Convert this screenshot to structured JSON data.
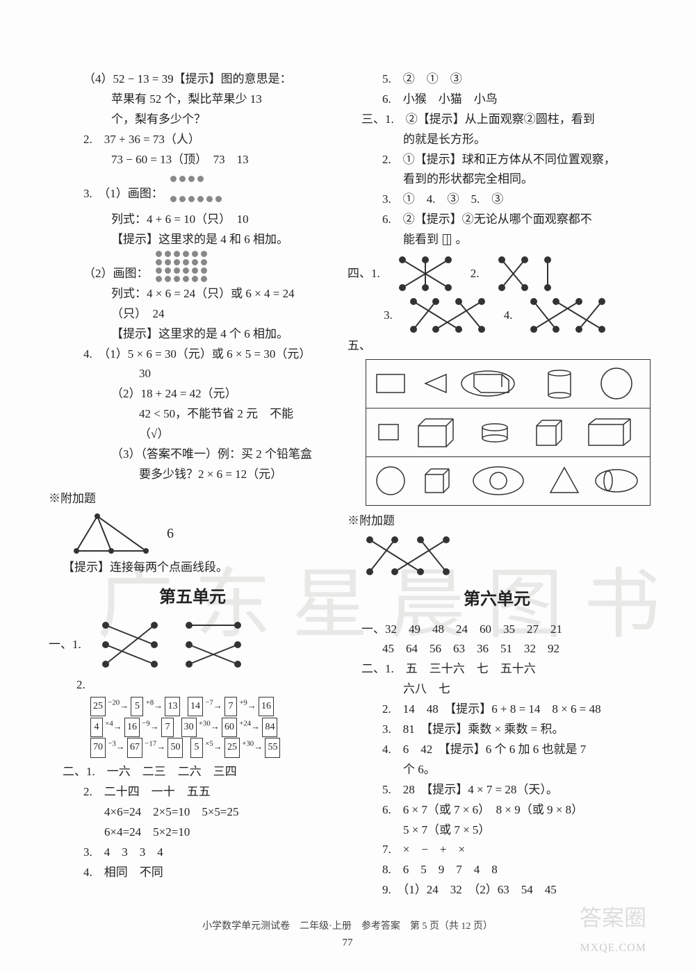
{
  "footer": "小学数学单元测试卷　二年级·上册　参考答案　第 5 页（共 12 页）",
  "pagenum": "77",
  "watermark": "广东星晨图书",
  "wm_corner": "答案圈",
  "wm_url": "MXQE.COM",
  "left": {
    "l1": "（4）52 − 13 = 39【提示】图的意思是：",
    "l2": "苹果有 52 个，梨比苹果少 13",
    "l3": "个，梨有多少个？",
    "l4": "2.　37 + 36 = 73（人）",
    "l5": "73 − 60 = 13（顶）　73　13",
    "l6": "3.　（1）画图：",
    "l7": "列式：4 + 6 = 10（只）　10",
    "l8": "【提示】这里求的是 4 和 6 相加。",
    "l9": "（2）画图：",
    "l10": "列式：4 × 6 = 24（只）或 6 × 4 = 24",
    "l11": "（只）　24",
    "l12": "【提示】这里求的是 4 个 6 相加。",
    "l13": "4.　（1）5 × 6 = 30（元）或 6 × 5 = 30（元）",
    "l14": "30",
    "l15": "（2）18 + 24 = 42（元）",
    "l16": "42 < 50，不能节省 2 元　不能",
    "l17": "（√）",
    "l18": "（3）（答案不唯一）例：买 2 个铅笔盒",
    "l19": "要多少钱？2 × 6 = 12（元）",
    "extra": "※附加题",
    "tri_ans": "6",
    "tri_hint": "【提示】连接每两个点画线段。",
    "unit5": "第五单元",
    "sec1_1": "一、1.",
    "sec1_2": "2.",
    "flow": {
      "r1a": [
        "25",
        "−20",
        "5",
        "+8",
        "13"
      ],
      "r1b": [
        "14",
        "−7",
        "7",
        "+9",
        "16"
      ],
      "r2a": [
        "4",
        "×4",
        "16",
        "−9",
        "7"
      ],
      "r2b": [
        "30",
        "+30",
        "60",
        "+24",
        "84"
      ],
      "r3a": [
        "70",
        "−3",
        "67",
        "−17",
        "50"
      ],
      "r3b": [
        "5",
        "×5",
        "25",
        "+30",
        "55"
      ]
    },
    "sec2_1": "二、1.　一六　二三　二六　三四",
    "sec2_2": "2.　二十四　一十　五五",
    "sec2_3": "4×6=24　2×5=10　5×5=25",
    "sec2_4": "6×4=24　5×2=10",
    "sec2_5": "3.　4　3　3　4",
    "sec2_6": "4.　相同　不同"
  },
  "right": {
    "r1": "5.　②　①　③",
    "r2": "6.　小猴　小猫　小鸟",
    "r3": "三、1.　②【提示】从上面观察②圆柱，看到",
    "r4": "的就是长方形。",
    "r5": "2.　①【提示】球和正方体从不同位置观察，",
    "r6": "看到的形状都完全相同。",
    "r7": "3.　①　4.　③　5.　③",
    "r8": "6.　②【提示】②无论从哪个面观察都不",
    "r9a": "能看到",
    "r9b": "。",
    "sec4": "四、1.",
    "sec4_2": "2.",
    "sec4_3": "3.",
    "sec4_4": "4.",
    "sec5": "五、",
    "extra": "※附加题",
    "unit6": "第六单元",
    "u6_1a": "一、32　49　48　24　60　35　27　21",
    "u6_1b": "45　64　56　63　36　51　32　92",
    "u6_2_1": "二、1.　五　三十六　七　五十六",
    "u6_2_1b": "六八　七",
    "u6_2_2": "2.　14　48　【提示】6 + 8 = 14　8 × 6 = 48",
    "u6_2_3": "3.　81　【提示】乘数 × 乘数 = 积。",
    "u6_2_4": "4.　6　42　【提示】6 个 6 加 6 也就是 7",
    "u6_2_4b": "个 6。",
    "u6_2_5": "5.　28　【提示】4 × 7 = 28（天）。",
    "u6_2_6": "6.　6 × 7（或 7 × 6）　8 × 9（或 9 × 8）",
    "u6_2_6b": "5 × 7（或 7 × 5）",
    "u6_2_7": "7.　×　−　+　×",
    "u6_2_8": "8.　6　5　9　7　4　8",
    "u6_2_9": "9.　（1）24　32　（2）63　54　45"
  }
}
